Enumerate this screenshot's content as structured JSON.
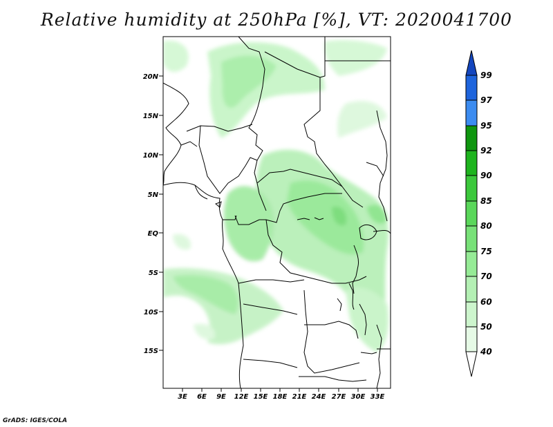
{
  "title": "Relative humidity at 250hPa [%], VT: 2020041700",
  "footer": "GrADS: IGES/COLA",
  "map": {
    "lat_labels": [
      "20N",
      "15N",
      "10N",
      "5N",
      "EQ",
      "5S",
      "10S",
      "15S"
    ],
    "lon_labels": [
      "3E",
      "6E",
      "9E",
      "12E",
      "15E",
      "18E",
      "21E",
      "24E",
      "27E",
      "30E",
      "33E"
    ]
  },
  "colorbar": {
    "labels": [
      "40",
      "50",
      "60",
      "70",
      "75",
      "80",
      "85",
      "90",
      "92",
      "95",
      "97",
      "99"
    ],
    "colors": [
      "#ffffff",
      "#e6fae6",
      "#cdf5cd",
      "#b4f0b4",
      "#96eb96",
      "#78e178",
      "#5ad75a",
      "#3cc83c",
      "#1eb41e",
      "#0f960f",
      "#3c8cf0",
      "#1e64dc",
      "#1446be"
    ]
  }
}
